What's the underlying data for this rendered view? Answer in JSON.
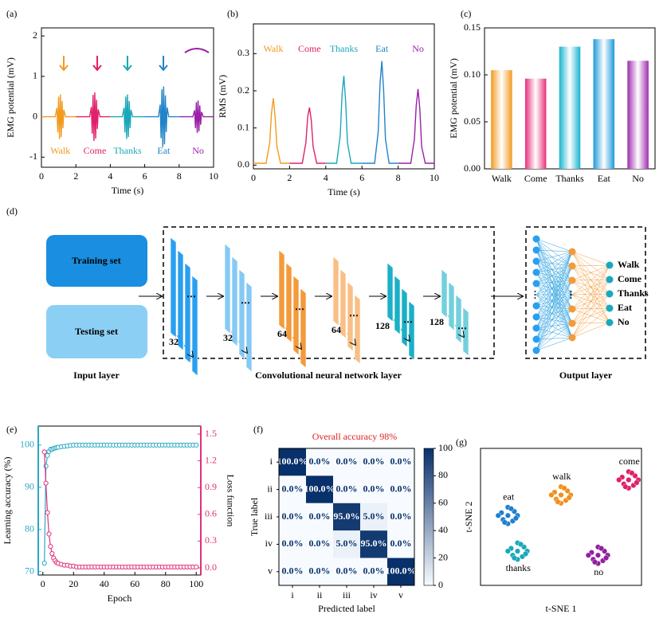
{
  "chart_data": [
    {
      "type": "line",
      "panel_label": "(a)",
      "xlabel": "Time (s)",
      "ylabel": "EMG potential (mV)",
      "xlim": [
        0,
        10
      ],
      "ylim": [
        -1.25,
        2.2
      ],
      "xticks": [
        0,
        2,
        4,
        6,
        8,
        10
      ],
      "yticks": [
        -1,
        0,
        1,
        2
      ],
      "series": [
        {
          "name": "Walk",
          "color": "#f39a1e",
          "x": [
            0,
            0.8,
            0.9,
            0.95,
            1.0,
            1.05,
            1.1,
            1.15,
            1.2,
            1.25,
            1.3,
            1.4,
            2
          ],
          "values": [
            0,
            0,
            0.22,
            -0.39,
            0.5,
            -0.55,
            0.55,
            -0.5,
            0.39,
            -0.28,
            0.17,
            0,
            0
          ]
        },
        {
          "name": "Come",
          "color": "#e0206a",
          "x": [
            2,
            2.8,
            2.9,
            2.95,
            3,
            3.05,
            3.1,
            3.15,
            3.2,
            3.25,
            3.3,
            3.4,
            4
          ],
          "values": [
            0,
            0,
            0.24,
            -0.42,
            0.54,
            -0.6,
            0.6,
            -0.54,
            0.42,
            -0.3,
            0.18,
            0,
            0
          ]
        },
        {
          "name": "Thanks",
          "color": "#1aa8b8",
          "x": [
            4,
            4.7,
            4.8,
            4.85,
            4.9,
            4.95,
            5,
            5.05,
            5.1,
            5.15,
            5.2,
            5.3,
            6
          ],
          "values": [
            0,
            0,
            0.22,
            -0.39,
            0.5,
            -0.55,
            0.55,
            -0.5,
            0.39,
            -0.28,
            0.17,
            0,
            0
          ]
        },
        {
          "name": "Eat",
          "color": "#2283c8",
          "x": [
            6,
            6.8,
            6.9,
            6.95,
            7,
            7.05,
            7.1,
            7.15,
            7.2,
            7.25,
            7.3,
            7.4,
            8
          ],
          "values": [
            0,
            0,
            0.3,
            -0.53,
            0.68,
            -0.75,
            0.75,
            -0.68,
            0.53,
            -0.38,
            0.23,
            0,
            0
          ]
        },
        {
          "name": "No",
          "color": "#9b1fa8",
          "x": [
            8,
            8.8,
            8.9,
            8.95,
            9,
            9.05,
            9.1,
            9.15,
            9.2,
            9.25,
            9.3,
            9.4,
            10
          ],
          "values": [
            0,
            0,
            0.16,
            -0.28,
            0.36,
            -0.4,
            0.4,
            -0.36,
            0.28,
            -0.2,
            0.12,
            0,
            0
          ]
        }
      ]
    },
    {
      "type": "line",
      "panel_label": "(b)",
      "xlabel": "Time (s)",
      "ylabel": "RMS (mV)",
      "xlim": [
        0,
        10
      ],
      "ylim": [
        -0.01,
        0.38
      ],
      "xticks": [
        0,
        2,
        4,
        6,
        8,
        10
      ],
      "yticks": [
        {
          "value": 0,
          "label": "0.0"
        },
        0.1,
        0.2,
        0.3
      ],
      "series": [
        {
          "name": "Walk",
          "color": "#f39a1e",
          "x": [
            0,
            0.7,
            0.9,
            1.0,
            1.1,
            1.2,
            1.3,
            1.5,
            2
          ],
          "values": [
            0.005,
            0.005,
            0.06,
            0.14,
            0.18,
            0.13,
            0.05,
            0.005,
            0.005
          ]
        },
        {
          "name": "Come",
          "color": "#e0206a",
          "x": [
            2,
            2.7,
            2.9,
            3.0,
            3.1,
            3.2,
            3.3,
            3.5,
            4
          ],
          "values": [
            0.005,
            0.005,
            0.06,
            0.13,
            0.155,
            0.12,
            0.05,
            0.005,
            0.005
          ]
        },
        {
          "name": "Thanks",
          "color": "#1aa8b8",
          "x": [
            4,
            4.6,
            4.8,
            4.9,
            5.0,
            5.1,
            5.2,
            5.4,
            6
          ],
          "values": [
            0.005,
            0.005,
            0.08,
            0.19,
            0.24,
            0.17,
            0.06,
            0.005,
            0.005
          ]
        },
        {
          "name": "Eat",
          "color": "#2283c8",
          "x": [
            6,
            6.7,
            6.9,
            7.0,
            7.1,
            7.2,
            7.3,
            7.5,
            8
          ],
          "values": [
            0.005,
            0.005,
            0.09,
            0.22,
            0.28,
            0.2,
            0.07,
            0.005,
            0.005
          ]
        },
        {
          "name": "No",
          "color": "#9b1fa8",
          "x": [
            8,
            8.7,
            8.9,
            9.0,
            9.1,
            9.2,
            9.3,
            9.5,
            10
          ],
          "values": [
            0.005,
            0.005,
            0.07,
            0.16,
            0.205,
            0.15,
            0.05,
            0.005,
            0.005
          ]
        }
      ]
    },
    {
      "type": "bar",
      "panel_label": "(c)",
      "ylabel": "EMG potential (mV)",
      "categories": [
        "Walk",
        "Come",
        "Thanks",
        "Eat",
        "No"
      ],
      "values": [
        0.105,
        0.096,
        0.13,
        0.138,
        0.115
      ],
      "colors": [
        "#f39a1e",
        "#e8307a",
        "#18b4d0",
        "#1e9ad8",
        "#a02cb0"
      ],
      "ylim": [
        0,
        0.15
      ],
      "yticks": [
        {
          "value": 0,
          "label": "0.00"
        },
        {
          "value": 0.05,
          "label": "0.05"
        },
        {
          "value": 0.1,
          "label": "0.10"
        },
        {
          "value": 0.15,
          "label": "0.15"
        }
      ]
    },
    {
      "type": "line",
      "panel_label": "(e)",
      "markers": true,
      "xlabel": "Epoch",
      "ylabel": "Learning accuracy (%)",
      "y2label": "Loss function",
      "xlim": [
        -3,
        103
      ],
      "ylim": [
        69.2,
        104.5
      ],
      "y2lim": [
        -0.08,
        1.59
      ],
      "xticks": [
        0,
        20,
        40,
        60,
        80,
        100
      ],
      "yticks": [
        70,
        80,
        90,
        100
      ],
      "y2ticks": [
        {
          "value": 0,
          "label": "0.0"
        },
        0.3,
        0.6,
        0.9,
        1.2,
        1.5
      ],
      "series": [
        {
          "color": "#2aa8c4",
          "x": [
            1,
            2,
            3,
            4,
            5,
            6,
            7,
            8,
            9,
            10,
            12,
            14,
            16,
            18,
            20,
            22,
            24,
            26,
            28,
            30,
            32,
            34,
            36,
            38,
            40,
            42,
            44,
            46,
            48,
            50,
            52,
            54,
            56,
            58,
            60,
            62,
            64,
            66,
            68,
            70,
            72,
            74,
            76,
            78,
            80,
            82,
            84,
            86,
            88,
            90,
            92,
            94,
            96,
            98,
            100
          ],
          "values": [
            72,
            95,
            97.5,
            98.5,
            99,
            99,
            99.2,
            99.3,
            99.4,
            99.5,
            99.6,
            99.7,
            99.8,
            99.9,
            100,
            100,
            100,
            100,
            100,
            100,
            100,
            100,
            100,
            100,
            100,
            100,
            100,
            100,
            100,
            100,
            100,
            100,
            100,
            100,
            100,
            100,
            100,
            100,
            100,
            100,
            100,
            100,
            100,
            100,
            100,
            100,
            100,
            100,
            100,
            100,
            100,
            100,
            100,
            100,
            100
          ]
        },
        {
          "color": "#e0307a",
          "axis": "y2",
          "x": [
            1,
            2,
            3,
            4,
            5,
            6,
            7,
            8,
            9,
            10,
            12,
            14,
            16,
            18,
            20,
            22,
            24,
            26,
            28,
            30,
            32,
            34,
            36,
            38,
            40,
            42,
            44,
            46,
            48,
            50,
            52,
            54,
            56,
            58,
            60,
            62,
            64,
            66,
            68,
            70,
            72,
            74,
            76,
            78,
            80,
            82,
            84,
            86,
            88,
            90,
            92,
            94,
            96,
            98,
            100
          ],
          "values": [
            1.3,
            0.95,
            0.62,
            0.38,
            0.24,
            0.16,
            0.11,
            0.08,
            0.06,
            0.05,
            0.04,
            0.03,
            0.03,
            0.02,
            0.02,
            0.01,
            0.01,
            0.01,
            0.01,
            0.01,
            0.01,
            0.01,
            0.01,
            0.01,
            0.01,
            0.01,
            0.01,
            0.01,
            0.01,
            0.01,
            0.01,
            0.01,
            0.01,
            0.01,
            0.01,
            0.01,
            0.01,
            0.01,
            0.01,
            0.01,
            0.01,
            0.01,
            0.01,
            0.01,
            0.01,
            0.01,
            0.01,
            0.01,
            0.01,
            0.01,
            0.01,
            0.01,
            0.01,
            0.01,
            0.01
          ]
        }
      ]
    },
    {
      "type": "heatmap",
      "panel_label": "(f)",
      "title": "Overall accuracy  98%",
      "title_color": "#e02020",
      "xlabel": "Predicted label",
      "ylabel": "True label",
      "x_categories": [
        "i",
        "ii",
        "iii",
        "iv",
        "v"
      ],
      "y_categories": [
        "i",
        "ii",
        "iii",
        "iv",
        "v"
      ],
      "values": [
        [
          100,
          0,
          0,
          0,
          0
        ],
        [
          0,
          100,
          0,
          0,
          0
        ],
        [
          0,
          0,
          95,
          5,
          0
        ],
        [
          0,
          0,
          5,
          95,
          0
        ],
        [
          0,
          0,
          0,
          0,
          100
        ]
      ],
      "value_labels": [
        [
          "100.0%",
          "0.0%",
          "0.0%",
          "0.0%",
          "0.0%"
        ],
        [
          "0.0%",
          "100.0%",
          "0.0%",
          "0.0%",
          "0.0%"
        ],
        [
          "0.0%",
          "0.0%",
          "95.0%",
          "5.0%",
          "0.0%"
        ],
        [
          "0.0%",
          "0.0%",
          "5.0%",
          "95.0%",
          "0.0%"
        ],
        [
          "0.0%",
          "0.0%",
          "0.0%",
          "0.0%",
          "100.0%"
        ]
      ],
      "zlim": [
        0,
        100
      ],
      "zticks": [
        0,
        20,
        40,
        60,
        80,
        100
      ],
      "colors": [
        "#f7fbff",
        "#08306b"
      ]
    },
    {
      "type": "scatter",
      "panel_label": "(g)",
      "xlabel": "t-SNE 1",
      "ylabel": "t-SNE 2",
      "xlim": [
        0,
        10
      ],
      "ylim": [
        0,
        10
      ],
      "series": [
        {
          "name": "eat",
          "color": "#1e7fd0",
          "x": [
            1.7,
            2.1,
            1.3,
            2.0,
            1.4,
            2.3,
            1.1,
            1.7,
            1.7,
            1.9,
            1.5,
            2.2
          ],
          "values": [
            5.1,
            5.4,
            5.3,
            4.7,
            4.8,
            5.1,
            5.1,
            5.7,
            4.5,
            5.6,
            4.6,
            4.9
          ]
        },
        {
          "name": "walk",
          "color": "#f0901e",
          "x": [
            5.0,
            5.4,
            4.6,
            5.3,
            4.7,
            5.6,
            4.4,
            5.0,
            5.0,
            5.2,
            4.8,
            5.5
          ],
          "values": [
            6.6,
            6.9,
            6.8,
            6.2,
            6.3,
            6.6,
            6.6,
            7.2,
            6.0,
            7.1,
            6.1,
            6.4
          ]
        },
        {
          "name": "come",
          "color": "#e0206a",
          "x": [
            9.2,
            9.6,
            8.8,
            9.5,
            8.9,
            9.8,
            8.6,
            9.2,
            9.2,
            9.4,
            9.0,
            9.7
          ],
          "values": [
            7.7,
            8.0,
            7.9,
            7.3,
            7.4,
            7.7,
            7.7,
            8.3,
            7.1,
            8.2,
            7.2,
            7.5
          ]
        },
        {
          "name": "thanks",
          "color": "#1aa8b8",
          "x": [
            2.3,
            2.7,
            1.9,
            2.6,
            2.0,
            2.9,
            1.7,
            2.3,
            2.3,
            2.5,
            2.1,
            2.8
          ],
          "values": [
            2.5,
            2.8,
            2.7,
            2.1,
            2.2,
            2.5,
            2.5,
            3.1,
            1.9,
            3.0,
            2.0,
            2.3
          ]
        },
        {
          "name": "no",
          "color": "#9020a0",
          "x": [
            7.3,
            7.7,
            6.9,
            7.6,
            7.0,
            7.9,
            6.7,
            7.3,
            7.3,
            7.5,
            7.1,
            7.8
          ],
          "values": [
            2.2,
            2.5,
            2.4,
            1.8,
            1.9,
            2.2,
            2.2,
            2.8,
            1.6,
            2.7,
            1.7,
            2.0
          ]
        }
      ]
    }
  ],
  "diagram": {
    "panel_label": "(d)",
    "input": {
      "training": "Training set",
      "testing": "Testing set",
      "label": "Input layer"
    },
    "cnn": {
      "label": "Convolutional neural  network layer",
      "layers": [
        {
          "channels": 32,
          "color": "#2a9ff0"
        },
        {
          "channels": 32,
          "color": "#86c9f5"
        },
        {
          "channels": 64,
          "color": "#f39a3a"
        },
        {
          "channels": 64,
          "color": "#f8bf86"
        },
        {
          "channels": 128,
          "color": "#19b0c8"
        },
        {
          "channels": 128,
          "color": "#72d0dc"
        }
      ]
    },
    "output": {
      "label": "Output layer",
      "classes": [
        "Walk",
        "Come",
        "Thanks",
        "Eat",
        "No"
      ]
    }
  }
}
